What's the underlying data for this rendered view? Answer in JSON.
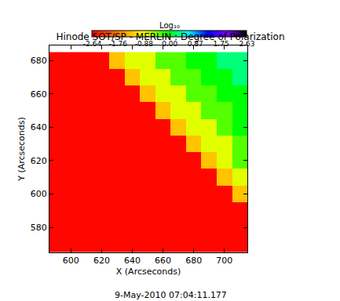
{
  "chart_data": {
    "type": "heatmap",
    "title": "Hinode SOT/SP - MERLIN : Degree of Polarization",
    "xlabel": "X (Arcseconds)",
    "ylabel": "Y (Arcseconds)",
    "annotations": [
      "9-May-2010 07:04:11.177"
    ],
    "x": [
      590,
      600,
      610,
      620,
      630,
      640,
      650,
      660,
      670,
      680,
      690,
      700,
      710
    ],
    "y": [
      570,
      580,
      590,
      600,
      610,
      620,
      630,
      640,
      650,
      660,
      670,
      680
    ],
    "z": [
      [
        -2.6,
        -2.6,
        -2.6,
        -2.6,
        -2.6,
        -2.6,
        -2.6,
        -2.6,
        -2.6,
        -2.6,
        -2.6,
        -2.6,
        -2.6
      ],
      [
        -2.6,
        -2.6,
        -2.6,
        -2.6,
        -2.6,
        -2.6,
        -2.6,
        -2.6,
        -2.6,
        -2.6,
        -2.6,
        -2.6,
        -2.6
      ],
      [
        -2.6,
        -2.6,
        -2.6,
        -2.6,
        -2.6,
        -2.6,
        -2.6,
        -2.6,
        -2.6,
        -2.6,
        -2.6,
        -2.6,
        -2.6
      ],
      [
        -2.6,
        -2.6,
        -2.6,
        -2.6,
        -2.6,
        -2.6,
        -2.6,
        -2.6,
        -2.6,
        -2.6,
        -2.6,
        -2.6,
        -1.3
      ],
      [
        -2.6,
        -2.6,
        -2.6,
        -2.6,
        -2.6,
        -2.6,
        -2.6,
        -2.6,
        -2.6,
        -2.6,
        -2.6,
        -1.3,
        -0.8
      ],
      [
        -2.6,
        -2.6,
        -2.6,
        -2.6,
        -2.6,
        -2.6,
        -2.6,
        -2.6,
        -2.6,
        -2.6,
        -1.3,
        -0.8,
        -0.3
      ],
      [
        -2.6,
        -2.6,
        -2.6,
        -2.6,
        -2.6,
        -2.6,
        -2.6,
        -2.6,
        -2.6,
        -1.3,
        -0.8,
        -0.8,
        -0.3
      ],
      [
        -2.6,
        -2.6,
        -2.6,
        -2.6,
        -2.6,
        -2.6,
        -2.6,
        -2.6,
        -1.3,
        -0.8,
        -0.8,
        -0.3,
        0.0
      ],
      [
        -2.6,
        -2.6,
        -2.6,
        -2.6,
        -2.6,
        -2.6,
        -2.6,
        -1.3,
        -0.8,
        -0.8,
        -0.3,
        -0.3,
        0.0
      ],
      [
        -2.6,
        -2.6,
        -2.6,
        -2.6,
        -2.6,
        -2.6,
        -1.3,
        -0.8,
        -0.8,
        -0.3,
        -0.3,
        0.0,
        0.0
      ],
      [
        -2.6,
        -2.6,
        -2.6,
        -2.6,
        -2.6,
        -1.3,
        -0.8,
        -0.8,
        -0.3,
        -0.3,
        0.0,
        0.0,
        0.3
      ],
      [
        -2.6,
        -2.6,
        -2.6,
        -2.6,
        -1.3,
        -0.8,
        -0.8,
        -0.3,
        -0.3,
        0.0,
        0.0,
        0.3,
        0.3
      ]
    ],
    "xlim": [
      586,
      715
    ],
    "ylim": [
      565,
      689
    ],
    "xticks": [
      600,
      620,
      640,
      660,
      680,
      700
    ],
    "yticks": [
      580,
      600,
      620,
      640,
      660,
      680
    ],
    "colorbar": {
      "title": "Log₁₀",
      "range": [
        -2.64,
        2.63
      ],
      "ticks": [
        -2.64,
        -1.76,
        -0.88,
        {
          "value": 0,
          "label": "0.00"
        },
        0.87,
        1.75,
        2.63
      ]
    }
  }
}
